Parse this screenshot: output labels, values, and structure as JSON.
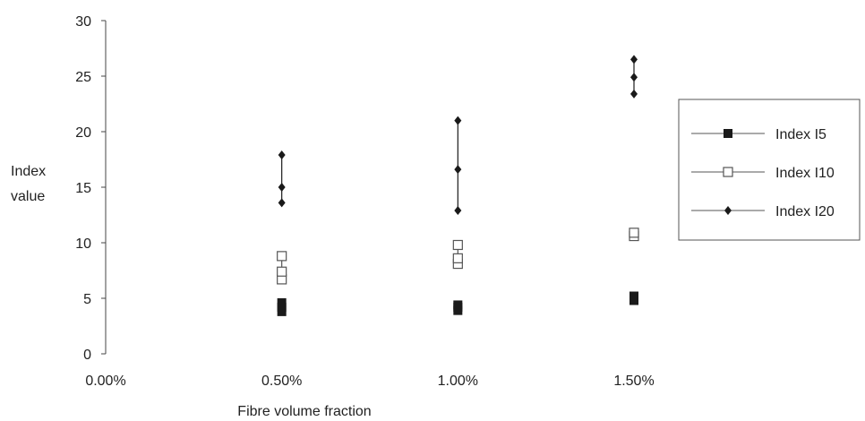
{
  "chart_data": {
    "type": "scatter",
    "title": "",
    "xlabel": "Fibre volume fraction",
    "ylabel_lines": [
      "Index",
      "value"
    ],
    "x_tick_labels": [
      "0.00%",
      "0.50%",
      "1.00%",
      "1.50%"
    ],
    "x_ticks": [
      0.0,
      0.5,
      1.0,
      1.5
    ],
    "xlim": [
      0.0,
      1.5
    ],
    "ylim": [
      0,
      30
    ],
    "y_ticks": [
      0,
      5,
      10,
      15,
      20,
      25,
      30
    ],
    "grid": false,
    "legend_position": "right",
    "series": [
      {
        "name": "Index I5",
        "marker": "filled-square",
        "color": "#1a1a1a",
        "points": [
          {
            "x": 0.5,
            "y": [
              3.8,
              4.2,
              4.6
            ]
          },
          {
            "x": 1.0,
            "y": [
              3.9,
              4.2,
              4.4
            ]
          },
          {
            "x": 1.5,
            "y": [
              4.8,
              5.0,
              5.2
            ]
          }
        ]
      },
      {
        "name": "Index I10",
        "marker": "open-square",
        "color": "#555555",
        "points": [
          {
            "x": 0.5,
            "y": [
              6.7,
              7.4,
              8.8
            ]
          },
          {
            "x": 1.0,
            "y": [
              8.1,
              8.6,
              9.8
            ]
          },
          {
            "x": 1.5,
            "y": [
              10.6,
              10.9
            ]
          }
        ]
      },
      {
        "name": "Index I20",
        "marker": "filled-diamond",
        "color": "#1a1a1a",
        "points": [
          {
            "x": 0.5,
            "y": [
              13.6,
              15.0,
              17.9
            ]
          },
          {
            "x": 1.0,
            "y": [
              12.9,
              16.6,
              21.0
            ]
          },
          {
            "x": 1.5,
            "y": [
              23.4,
              24.9,
              26.5
            ]
          }
        ]
      }
    ]
  }
}
